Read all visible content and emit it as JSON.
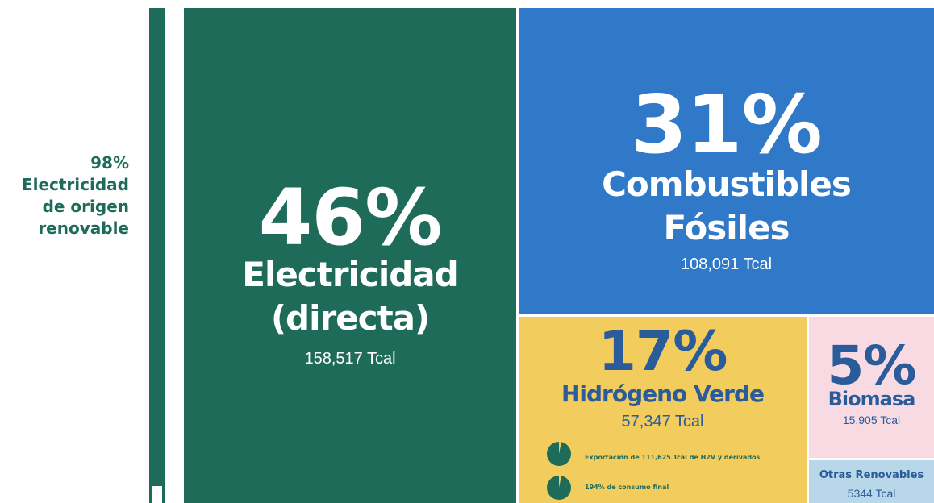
{
  "side_note": {
    "pct": "98%",
    "lines": [
      "Electricidad",
      "de origen",
      "renovable"
    ]
  },
  "blocks": {
    "electricidad": {
      "pct": "46%",
      "lines": [
        "Electricidad",
        "(directa)"
      ],
      "amount": "158,517 Tcal"
    },
    "fosiles": {
      "pct": "31%",
      "lines": [
        "Combustibles",
        "Fósiles"
      ],
      "amount": "108,091 Tcal"
    },
    "hidrogeno": {
      "pct": "17%",
      "lines": [
        "Hidrógeno Verde"
      ],
      "amount": "57,347 Tcal",
      "notes": [
        "Exportación de 111,625 Tcal de H2V y derivados",
        "194% de consumo final"
      ]
    },
    "biomasa": {
      "pct": "5%",
      "lines": [
        "Biomasa"
      ],
      "amount": "15,905 Tcal"
    },
    "otras": {
      "lines": [
        "Otras Renovables"
      ],
      "amount": "5344 Tcal"
    }
  }
}
